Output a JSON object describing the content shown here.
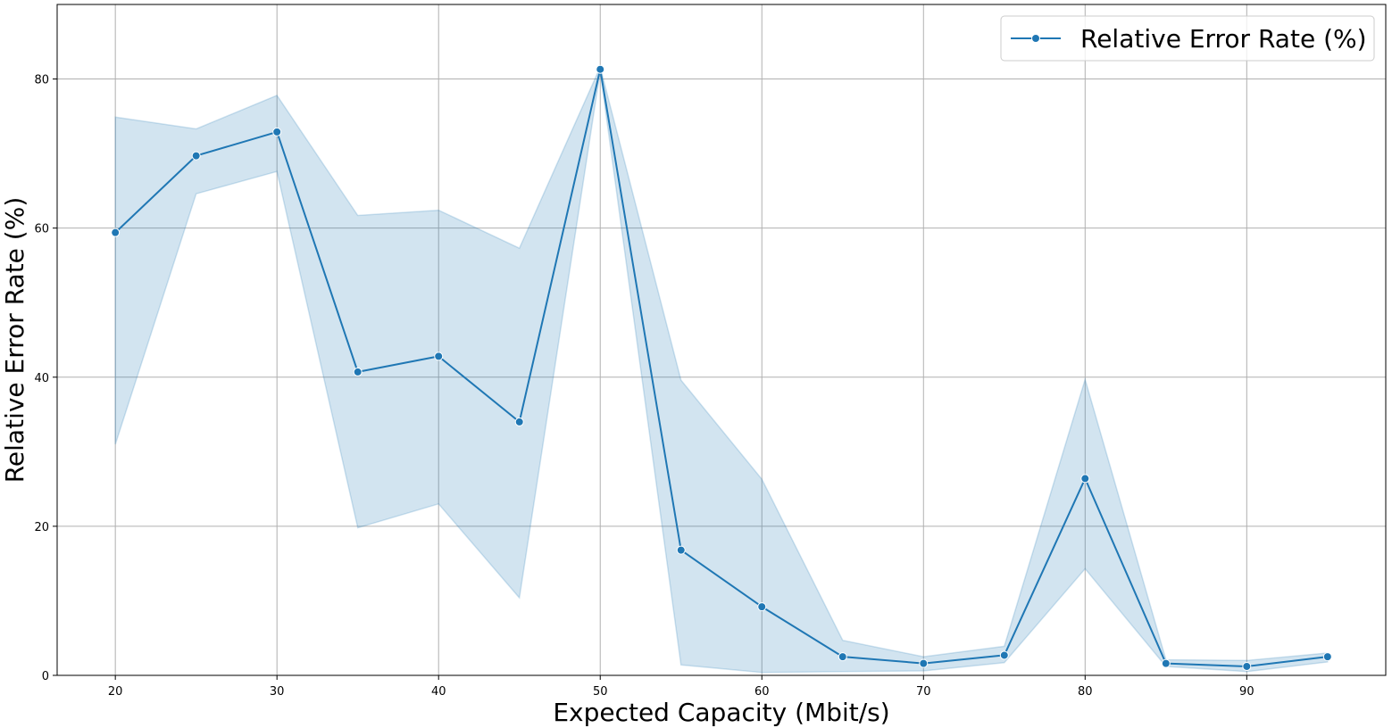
{
  "chart_data": {
    "type": "line",
    "xlabel": "Expected Capacity (Mbit/s)",
    "ylabel": "Relative Error Rate (%)",
    "xlim": [
      16.4,
      98.6
    ],
    "ylim": [
      0,
      90
    ],
    "x_ticks": [
      20,
      30,
      40,
      50,
      60,
      70,
      80,
      90
    ],
    "y_ticks": [
      0,
      20,
      40,
      60,
      80
    ],
    "grid": true,
    "legend_position": "top-right",
    "colors": {
      "line": "#1f77b4",
      "band": "#1f77b4",
      "grid": "#b0b0b0"
    },
    "series": [
      {
        "name": "Relative Error Rate (%)",
        "x": [
          20,
          25,
          30,
          35,
          40,
          45,
          50,
          55,
          60,
          65,
          70,
          75,
          80,
          85,
          90,
          95
        ],
        "y": [
          59.4,
          69.7,
          72.9,
          40.7,
          42.8,
          34.0,
          81.3,
          16.8,
          9.2,
          2.5,
          1.6,
          2.7,
          26.4,
          1.6,
          1.2,
          2.5
        ],
        "ci_lower": [
          31.0,
          64.6,
          67.6,
          19.8,
          23.0,
          10.4,
          81.0,
          1.4,
          0.4,
          0.5,
          0.6,
          1.7,
          14.3,
          1.2,
          0.5,
          1.8
        ],
        "ci_upper": [
          74.9,
          73.3,
          77.8,
          61.7,
          62.4,
          57.3,
          81.6,
          39.6,
          26.3,
          4.7,
          2.5,
          3.9,
          39.7,
          2.1,
          2.0,
          3.0
        ]
      }
    ]
  }
}
